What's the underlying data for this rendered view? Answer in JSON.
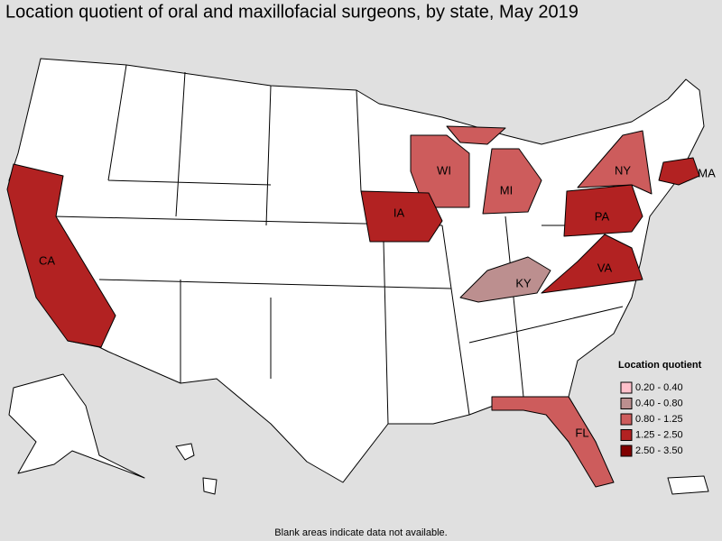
{
  "title": "Location quotient of oral and maxillofacial surgeons, by state, May 2019",
  "note": "Blank areas indicate data not available.",
  "legend": {
    "title": "Location quotient",
    "items": [
      {
        "label": "0.20 - 0.40",
        "color": "#ffc0cb",
        "states": []
      },
      {
        "label": "0.40 - 0.80",
        "color": "#bc8f8f",
        "states": [
          "KY"
        ]
      },
      {
        "label": "0.80 - 1.25",
        "color": "#cd5c5c",
        "states": [
          "WI",
          "MI",
          "NY",
          "FL"
        ]
      },
      {
        "label": "1.25 - 2.50",
        "color": "#b22222",
        "states": [
          "CA",
          "IA",
          "PA",
          "VA",
          "MA"
        ]
      },
      {
        "label": "2.50 - 3.50",
        "color": "#800000",
        "states": []
      }
    ]
  }
}
